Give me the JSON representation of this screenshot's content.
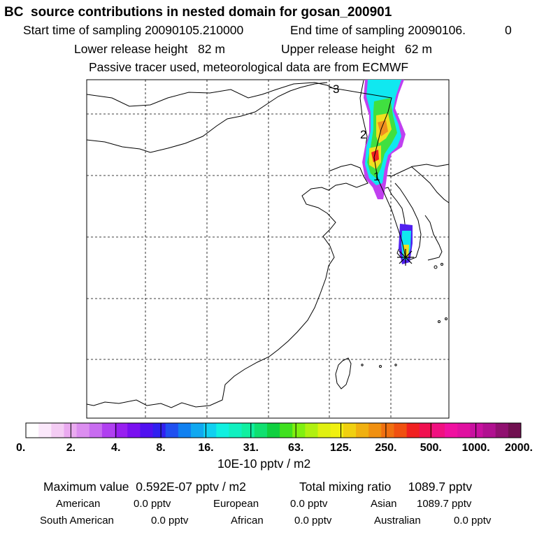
{
  "header": {
    "title": "BC  source contributions in nested domain for gosan_200901",
    "start_label": "Start time of sampling 20090105.210000",
    "end_label": "End time of sampling 20090106.",
    "end_suffix": "0",
    "lower_release": "Lower release height   82 m",
    "upper_release": "Upper release height   62 m",
    "tracer_note": "Passive tracer used, meteorological data are from ECMWF"
  },
  "chart_data": {
    "type": "heatmap",
    "title": "BC  source contributions in nested domain for gosan_200901",
    "colorbar_unit": "10E-10 pptv / m2",
    "colorbar_ticks": [
      "0.",
      "2.",
      "4.",
      "8.",
      "16.",
      "31.",
      "63.",
      "125.",
      "250.",
      "500.",
      "1000.",
      "2000."
    ],
    "colorbar_colors": [
      "#ffffff",
      "#fbe8fb",
      "#f4ccf4",
      "#eaaaf0",
      "#dc8ef0",
      "#c86cf0",
      "#b040f0",
      "#9820f0",
      "#7a10f0",
      "#5010f0",
      "#3020f0",
      "#2050f0",
      "#1080f0",
      "#10a8f0",
      "#10d0f0",
      "#10f0e0",
      "#10f0c0",
      "#10f0a0",
      "#10e070",
      "#10d040",
      "#40e020",
      "#80f010",
      "#b0f010",
      "#e0f010",
      "#f0f010",
      "#f0d010",
      "#f0b010",
      "#f09010",
      "#f07010",
      "#f05010",
      "#f02020",
      "#f01050",
      "#f01080",
      "#f010a0",
      "#e010a0",
      "#c810a0",
      "#b01090",
      "#901070",
      "#701050"
    ],
    "trajectory_labels": [
      "1",
      "2",
      "3"
    ],
    "receptor": "gosan",
    "annotations": "Stations: receptor marked with star"
  },
  "summary": {
    "max_value": "Maximum value  0.592E-07 pptv / m2",
    "total_mixing": "Total mixing ratio     1089.7 pptv",
    "rows": [
      [
        [
          "American",
          "0.0 pptv"
        ],
        [
          "European",
          "0.0 pptv"
        ],
        [
          "Asian",
          "1089.7 pptv"
        ]
      ],
      [
        [
          "South American",
          "0.0 pptv"
        ],
        [
          "African",
          "0.0 pptv"
        ],
        [
          "Australian",
          "0.0 pptv"
        ]
      ]
    ]
  },
  "colors": {
    "frame": "#000000",
    "grid": "#000000"
  }
}
